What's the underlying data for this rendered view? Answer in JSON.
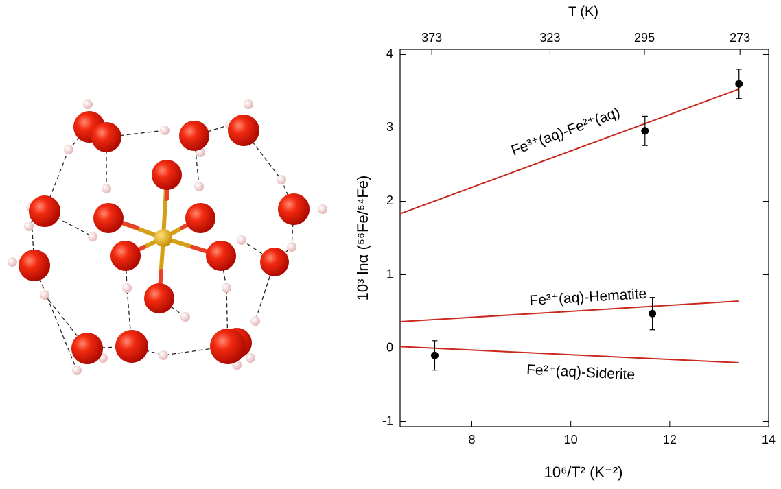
{
  "chart_data": {
    "type": "scatter",
    "x_label": "10⁶/T² (K⁻²)",
    "y_label": "10³ lnα (⁵⁶Fe/⁵⁴Fe)",
    "x2_label": "T (K)",
    "xlim": [
      6.55,
      14
    ],
    "ylim": [
      -1.07,
      4.07
    ],
    "xticks": [
      8,
      10,
      12,
      14
    ],
    "yticks": [
      -1,
      0,
      1,
      2,
      3,
      4
    ],
    "x2ticks": [
      {
        "value": 7.19,
        "label": "373"
      },
      {
        "value": 9.58,
        "label": "323"
      },
      {
        "value": 11.49,
        "label": "295"
      },
      {
        "value": 13.42,
        "label": "273"
      }
    ],
    "hline": 0,
    "points": {
      "color": "#000000",
      "x": [
        7.25,
        11.5,
        11.65,
        13.4
      ],
      "y": [
        -0.1,
        2.96,
        0.47,
        3.6
      ],
      "yerr": [
        0.2,
        0.2,
        0.22,
        0.2
      ]
    },
    "series": [
      {
        "name": "Fe³⁺(aq)-Fe²⁺(aq)",
        "color": "#c8281e",
        "x": [
          6.55,
          13.4
        ],
        "values": [
          1.83,
          3.53
        ]
      },
      {
        "name": "Fe³⁺(aq)-Hematite",
        "color": "#c8281e",
        "x": [
          6.55,
          13.4
        ],
        "values": [
          0.36,
          0.64
        ]
      },
      {
        "name": "Fe²⁺(aq)-Siderite",
        "color": "#c8281e",
        "x": [
          6.55,
          13.4
        ],
        "values": [
          0.02,
          -0.2
        ]
      }
    ]
  }
}
